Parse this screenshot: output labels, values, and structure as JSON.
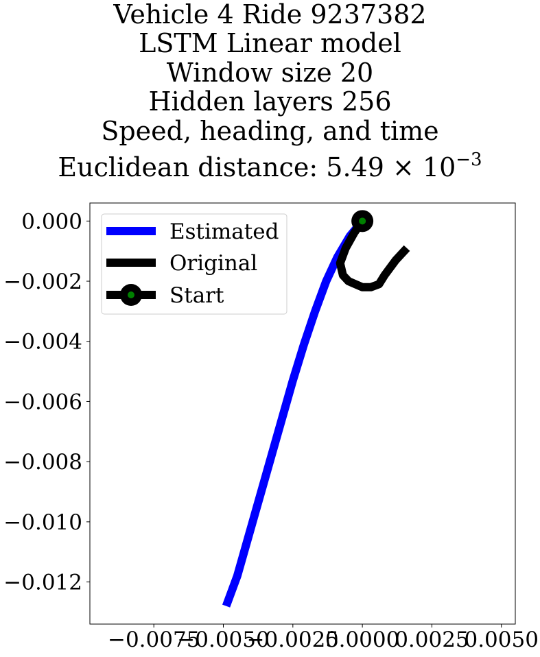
{
  "title_lines": [
    "Vehicle 4 Ride 9237382",
    "LSTM Linear model",
    "Window size 20",
    "Hidden layers 256",
    "Speed, heading, and time"
  ],
  "distance_prefix": "Euclidean distance: ",
  "distance_mantissa": "5.49",
  "distance_times": " × 10",
  "distance_exponent": "−3",
  "chart_data": {
    "type": "line",
    "title": "Vehicle 4 Ride 9237382 / LSTM Linear model / Window size 20 / Hidden layers 256 / Speed, heading, and time / Euclidean distance: 5.49×10^-3",
    "xlabel": "",
    "ylabel": "",
    "xlim": [
      -0.0098,
      0.0055
    ],
    "ylim": [
      -0.0134,
      0.0006
    ],
    "x_ticks": [
      -0.0075,
      -0.005,
      -0.0025,
      0.0,
      0.0025,
      0.005
    ],
    "x_tick_labels": [
      "−0.0075",
      "−0.0050",
      "−0.0025",
      "0.0000",
      "0.0025",
      "0.0050"
    ],
    "y_ticks": [
      0.0,
      -0.002,
      -0.004,
      -0.006,
      -0.008,
      -0.01,
      -0.012
    ],
    "y_tick_labels": [
      "0.000",
      "−0.002",
      "−0.004",
      "−0.006",
      "−0.008",
      "−0.010",
      "−0.012"
    ],
    "grid": false,
    "legend_position": "top-left",
    "series": [
      {
        "name": "Estimated",
        "color": "#0000ff",
        "x": [
          0.0,
          -0.00045,
          -0.0009,
          -0.0013,
          -0.0017,
          -0.0021,
          -0.0025,
          -0.0029,
          -0.0033,
          -0.0037,
          -0.0041,
          -0.0045,
          -0.0049
        ],
        "y": [
          0.0,
          -0.0005,
          -0.0012,
          -0.002,
          -0.003,
          -0.0041,
          -0.0053,
          -0.0066,
          -0.0079,
          -0.0092,
          -0.0105,
          -0.0118,
          -0.0128
        ]
      },
      {
        "name": "Original",
        "color": "#000000",
        "x": [
          0.0,
          -0.0003,
          -0.0006,
          -0.0008,
          -0.0007,
          -0.0005,
          0.0,
          0.0003,
          0.0006,
          0.0008,
          0.0012,
          0.0016
        ],
        "y": [
          0.0,
          -0.0004,
          -0.0009,
          -0.0014,
          -0.0018,
          -0.002,
          -0.0022,
          -0.0022,
          -0.0021,
          -0.0018,
          -0.0013,
          -0.0009
        ]
      },
      {
        "name": "Start",
        "color": "#000000",
        "marker_face": "#008000",
        "x": [
          0.0
        ],
        "y": [
          0.0
        ]
      }
    ]
  }
}
